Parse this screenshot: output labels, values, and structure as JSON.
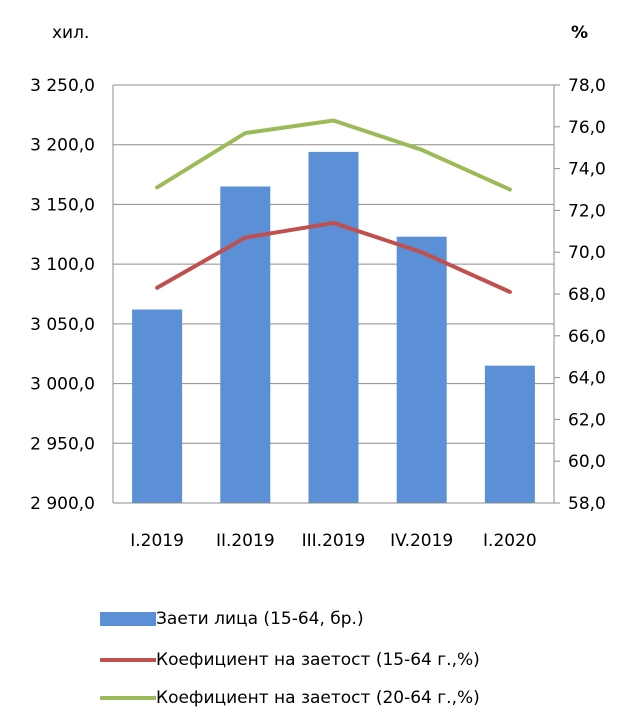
{
  "chart_data": {
    "type": "bar+line",
    "categories": [
      "I.2019",
      "II.2019",
      "III.2019",
      "IV.2019",
      "I.2020"
    ],
    "left_unit": "хил.",
    "right_unit": "%",
    "left_axis": {
      "ylim": [
        2900,
        3250
      ],
      "ticks": [
        2900,
        2950,
        3000,
        3050,
        3100,
        3150,
        3200,
        3250
      ],
      "tick_labels": [
        "2 900,0",
        "2 950,0",
        "3 000,0",
        "3 050,0",
        "3 100,0",
        "3 150,0",
        "3 200,0",
        "3 250,0"
      ]
    },
    "right_axis": {
      "ylim": [
        58,
        78
      ],
      "ticks": [
        58,
        60,
        62,
        64,
        66,
        68,
        70,
        72,
        74,
        76,
        78
      ],
      "tick_labels": [
        "58,0",
        "60,0",
        "62,0",
        "64,0",
        "66,0",
        "68,0",
        "70,0",
        "72,0",
        "74,0",
        "76,0",
        "78,0"
      ]
    },
    "series": [
      {
        "name": "Заети лица (15-64, бр.)",
        "type": "bar",
        "axis": "left",
        "color": "#5b8fd6",
        "values": [
          3062,
          3165,
          3194,
          3123,
          3015
        ]
      },
      {
        "name": "Коефициент на заетост (15-64 г.,%)",
        "type": "line",
        "axis": "right",
        "color": "#c0504d",
        "values": [
          68.3,
          70.7,
          71.4,
          70.0,
          68.1
        ]
      },
      {
        "name": "Коефициент на заетост (20-64 г.,%)",
        "type": "line",
        "axis": "right",
        "color": "#9bbb59",
        "values": [
          73.1,
          75.7,
          76.3,
          74.9,
          73.0
        ]
      }
    ],
    "grid": true,
    "legend": "bottom"
  }
}
